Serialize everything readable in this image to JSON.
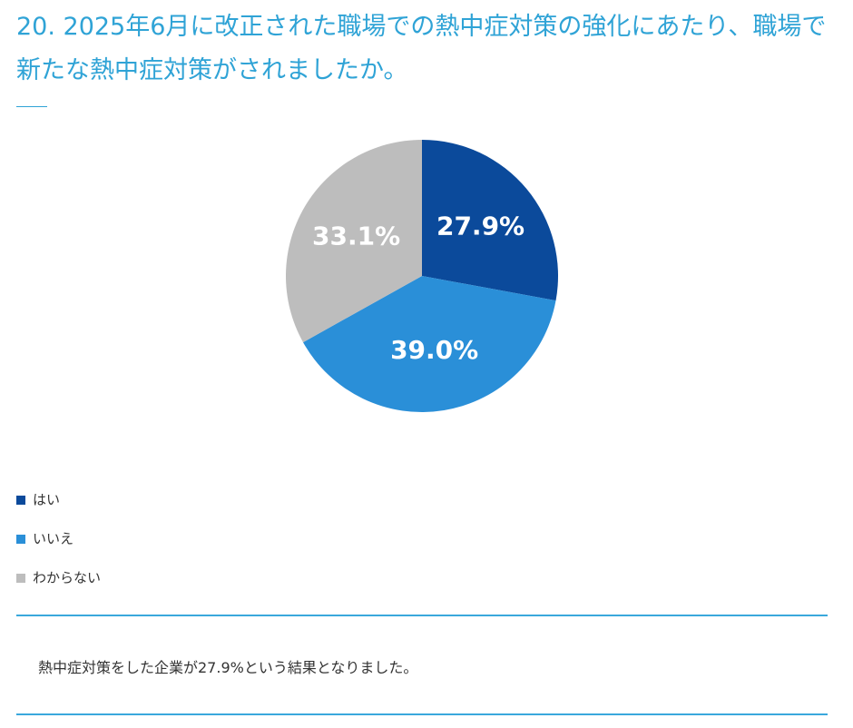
{
  "chart_data": {
    "type": "pie",
    "title": "20. 2025年6月に改正された職場での熱中症対策の強化にあたり、職場で新たな熱中症対策がされましたか。",
    "categories": [
      "はい",
      "いいえ",
      "わからない"
    ],
    "values": [
      27.9,
      39.0,
      33.1
    ],
    "value_labels": [
      "27.9%",
      "39.0%",
      "33.1%"
    ],
    "colors": [
      "#0b4a9b",
      "#2a8fd8",
      "#bdbdbd"
    ]
  },
  "summary": "熱中症対策をした企業が27.9%という結果となりました。"
}
